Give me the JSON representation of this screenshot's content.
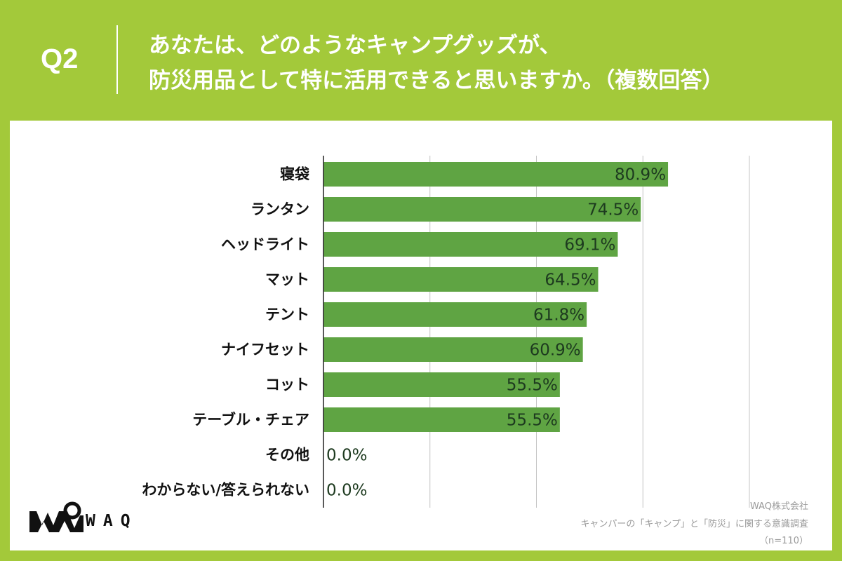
{
  "header": {
    "question_no": "Q2",
    "title_line1": "あなたは、どのようなキャンプグッズが、",
    "title_line2": "防災用品として特に活用できると思いますか。（複数回答）"
  },
  "chart_data": {
    "type": "bar",
    "orientation": "horizontal",
    "categories": [
      "寝袋",
      "ランタン",
      "ヘッドライト",
      "マット",
      "テント",
      "ナイフセット",
      "コット",
      "テーブル・チェア",
      "その他",
      "わからない/答えられない"
    ],
    "values": [
      80.9,
      74.5,
      69.1,
      64.5,
      61.8,
      60.9,
      55.5,
      55.5,
      0.0,
      0.0
    ],
    "value_labels": [
      "80.9%",
      "74.5%",
      "69.1%",
      "64.5%",
      "61.8%",
      "60.9%",
      "55.5%",
      "55.5%",
      "0.0%",
      "0.0%"
    ],
    "xlim": [
      0,
      100
    ],
    "grid_at": [
      0,
      25,
      50,
      75,
      100
    ],
    "unit": "%",
    "bar_color": "#5fa443"
  },
  "footer": {
    "company": "WAQ株式会社",
    "survey": "キャンパーの「キャンプ」と「防災」に関する意識調査",
    "sample": "（n=110）",
    "logo_text": "WAQ"
  },
  "colors": {
    "background": "#a3c93a",
    "panel": "#ffffff",
    "bar": "#5fa443"
  }
}
